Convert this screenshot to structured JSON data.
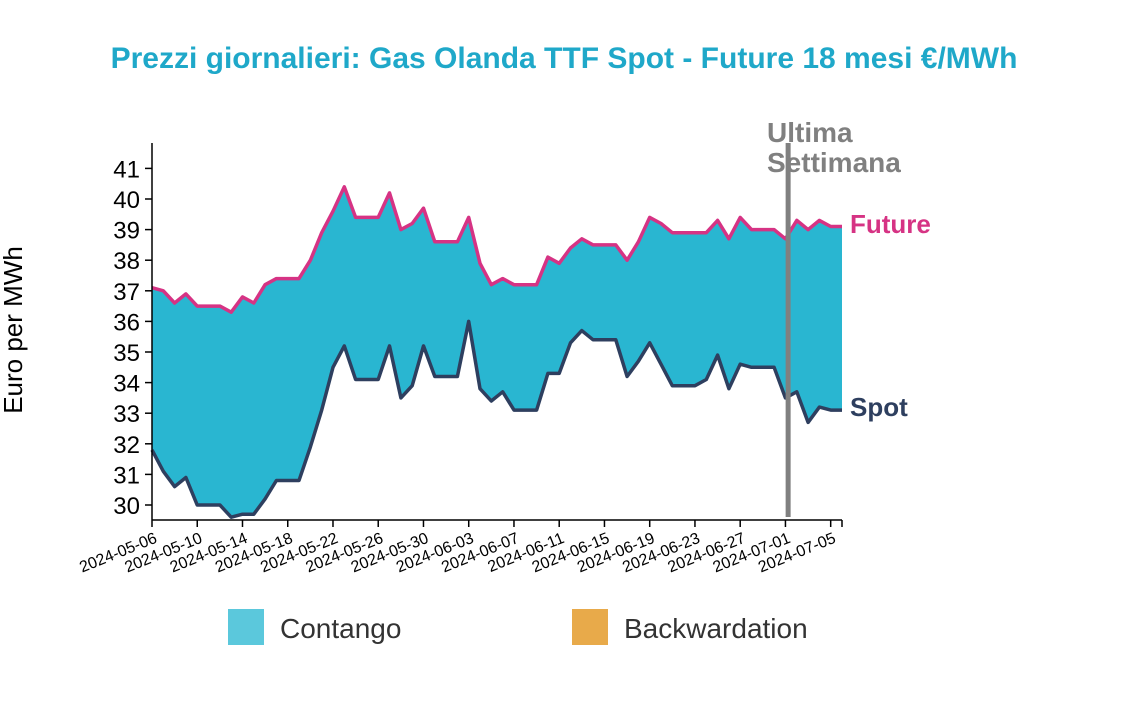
{
  "chart_data": {
    "type": "area",
    "title": "Prezzi giornalieri: Gas Olanda TTF Spot - Future 18 mesi €/MWh",
    "ylabel": "Euro per MWh",
    "ylim": [
      29.6,
      41.6
    ],
    "yticks": [
      30,
      31,
      32,
      33,
      34,
      35,
      36,
      37,
      38,
      39,
      40,
      41
    ],
    "xticks": [
      "2024-05-06",
      "2024-05-10",
      "2024-05-14",
      "2024-05-18",
      "2024-05-22",
      "2024-05-26",
      "2024-05-30",
      "2024-06-03",
      "2024-06-07",
      "2024-06-11",
      "2024-06-15",
      "2024-06-19",
      "2024-06-23",
      "2024-06-27",
      "2024-07-01",
      "2024-07-05"
    ],
    "x": [
      "2024-05-06",
      "2024-05-07",
      "2024-05-08",
      "2024-05-09",
      "2024-05-10",
      "2024-05-11",
      "2024-05-12",
      "2024-05-13",
      "2024-05-14",
      "2024-05-15",
      "2024-05-16",
      "2024-05-17",
      "2024-05-18",
      "2024-05-19",
      "2024-05-20",
      "2024-05-21",
      "2024-05-22",
      "2024-05-23",
      "2024-05-24",
      "2024-05-25",
      "2024-05-26",
      "2024-05-27",
      "2024-05-28",
      "2024-05-29",
      "2024-05-30",
      "2024-05-31",
      "2024-06-01",
      "2024-06-02",
      "2024-06-03",
      "2024-06-04",
      "2024-06-05",
      "2024-06-06",
      "2024-06-07",
      "2024-06-08",
      "2024-06-09",
      "2024-06-10",
      "2024-06-11",
      "2024-06-12",
      "2024-06-13",
      "2024-06-14",
      "2024-06-15",
      "2024-06-16",
      "2024-06-17",
      "2024-06-18",
      "2024-06-19",
      "2024-06-20",
      "2024-06-21",
      "2024-06-22",
      "2024-06-23",
      "2024-06-24",
      "2024-06-25",
      "2024-06-26",
      "2024-06-27",
      "2024-06-28",
      "2024-06-29",
      "2024-06-30",
      "2024-07-01",
      "2024-07-02",
      "2024-07-03",
      "2024-07-04",
      "2024-07-05",
      "2024-07-06"
    ],
    "series": [
      {
        "name": "Future",
        "color": "#d63384",
        "values": [
          37.1,
          37.0,
          36.6,
          36.9,
          36.5,
          36.5,
          36.5,
          36.3,
          36.8,
          36.6,
          37.2,
          37.4,
          37.4,
          37.4,
          38.0,
          38.9,
          39.6,
          40.4,
          39.4,
          39.4,
          39.4,
          40.2,
          39.0,
          39.2,
          39.7,
          38.6,
          38.6,
          38.6,
          39.4,
          37.9,
          37.2,
          37.4,
          37.2,
          37.2,
          37.2,
          38.1,
          37.9,
          38.4,
          38.7,
          38.5,
          38.5,
          38.5,
          38.0,
          38.6,
          39.4,
          39.2,
          38.9,
          38.9,
          38.9,
          38.9,
          39.3,
          38.7,
          39.4,
          39.0,
          39.0,
          39.0,
          38.7,
          39.3,
          39.0,
          39.3,
          39.1,
          39.1
        ]
      },
      {
        "name": "Spot",
        "color": "#2e3f5f",
        "values": [
          31.8,
          31.1,
          30.6,
          30.9,
          30.0,
          30.0,
          30.0,
          29.6,
          29.7,
          29.7,
          30.2,
          30.8,
          30.8,
          30.8,
          31.9,
          33.1,
          34.5,
          35.2,
          34.1,
          34.1,
          34.1,
          35.2,
          33.5,
          33.9,
          35.2,
          34.2,
          34.2,
          34.2,
          36.0,
          33.8,
          33.4,
          33.7,
          33.1,
          33.1,
          33.1,
          34.3,
          34.3,
          35.3,
          35.7,
          35.4,
          35.4,
          35.4,
          34.2,
          34.7,
          35.3,
          34.6,
          33.9,
          33.9,
          33.9,
          34.1,
          34.9,
          33.8,
          34.6,
          34.5,
          34.5,
          34.5,
          33.5,
          33.7,
          32.7,
          33.2,
          33.1,
          33.1
        ]
      }
    ],
    "area_colors": {
      "contango": "#29b6d1",
      "backwardation": "#e8aa4a"
    },
    "marker": {
      "date": "2024-06-30",
      "label_line1": "Ultima",
      "label_line2": "Settimana",
      "color": "#808080"
    },
    "legend": {
      "placement": "bottom",
      "items": [
        {
          "label": "Contango",
          "color": "#5bc8dc"
        },
        {
          "label": "Backwardation",
          "color": "#e8aa4a"
        }
      ]
    },
    "colors": {
      "title": "#1fa8c9",
      "axis": "#000000"
    }
  }
}
